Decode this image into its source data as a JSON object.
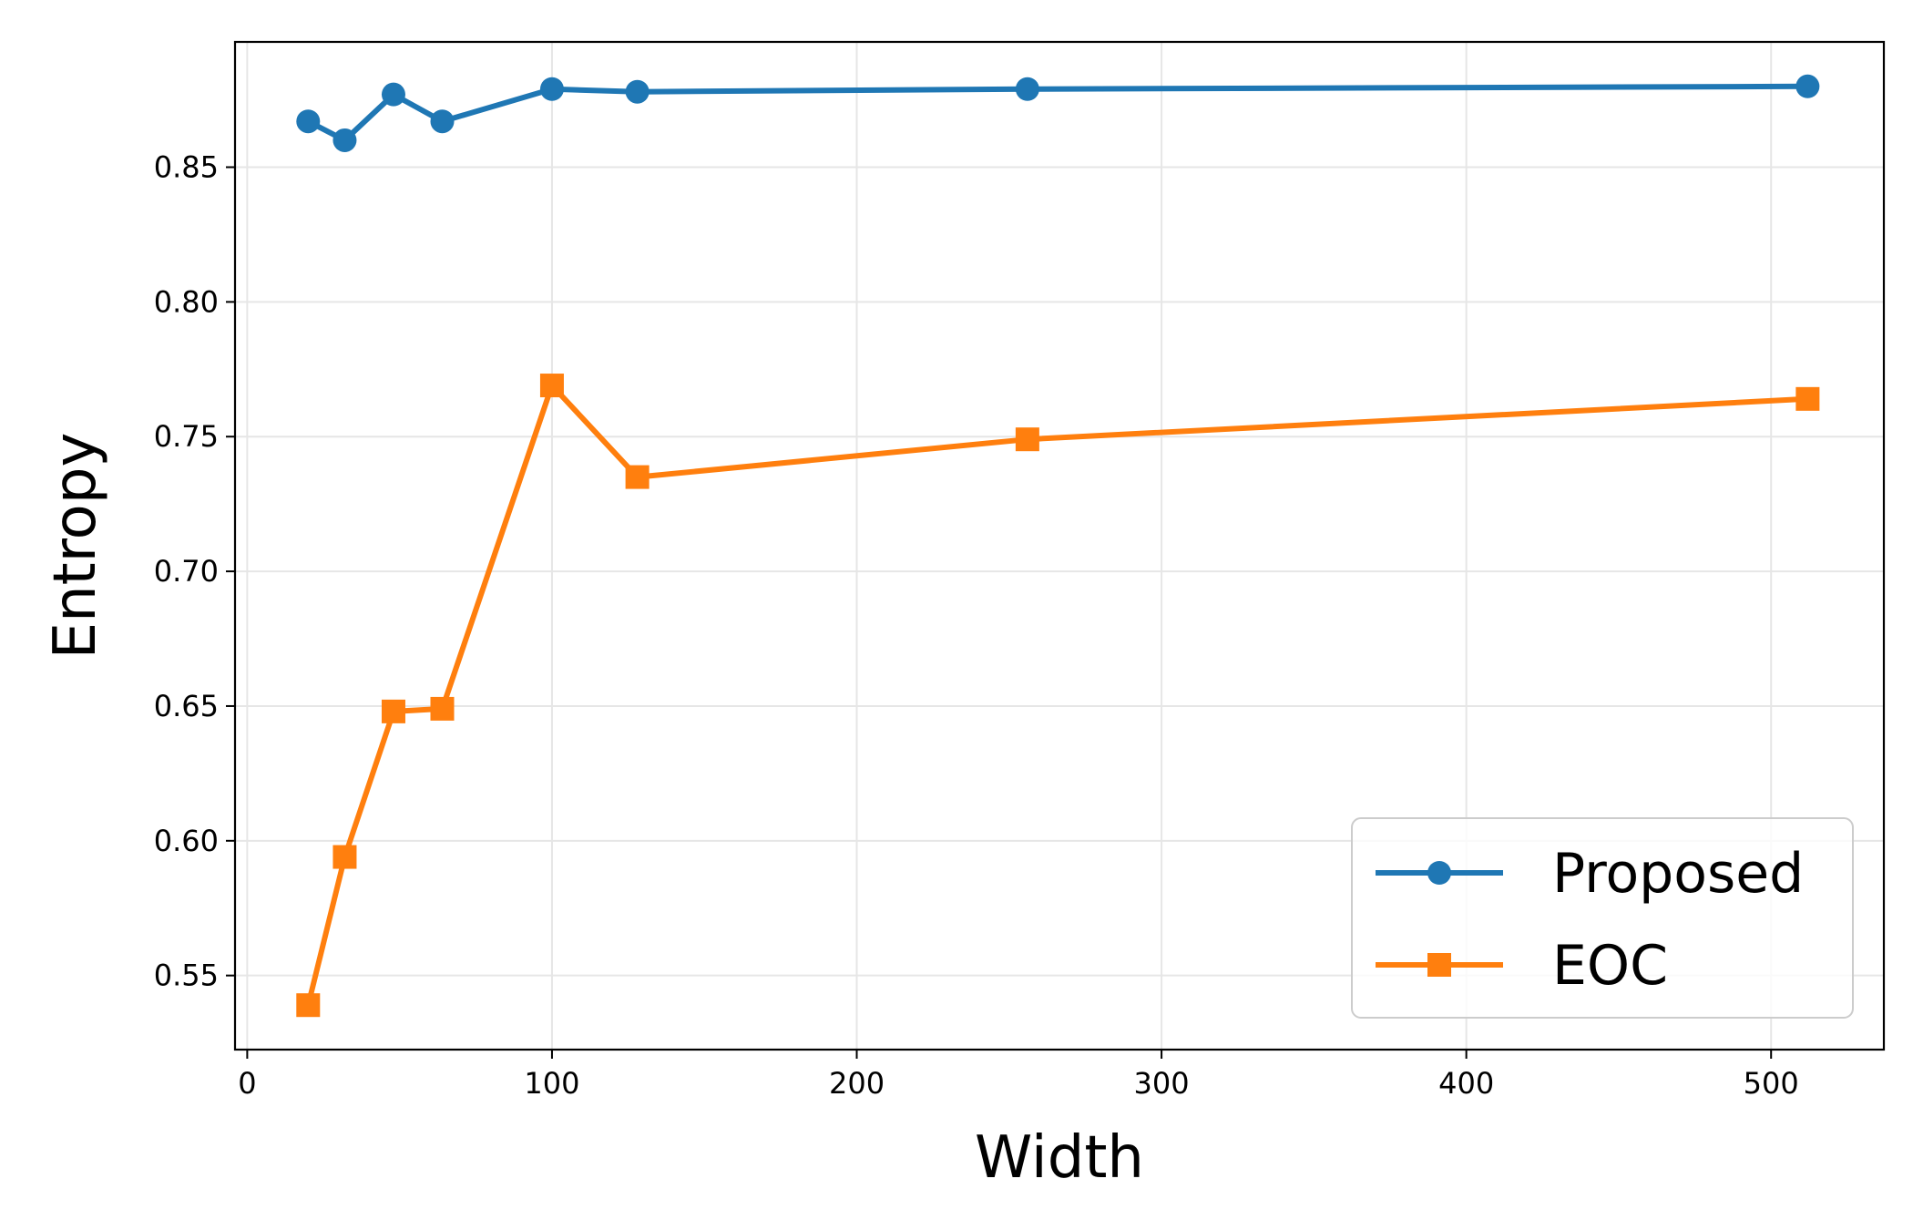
{
  "chart_data": {
    "type": "line",
    "title": "",
    "xlabel": "Width",
    "ylabel": "Entropy",
    "xlim": [
      -4,
      537
    ],
    "ylim": [
      0.5225,
      0.8965
    ],
    "xticks": [
      0,
      100,
      200,
      300,
      400,
      500
    ],
    "yticks": [
      0.55,
      0.6,
      0.65,
      0.7,
      0.75,
      0.8,
      0.85
    ],
    "grid": true,
    "legend_position": "lower-right",
    "series": [
      {
        "name": "Proposed",
        "color": "#1f77b4",
        "marker": "circle",
        "x": [
          20,
          32,
          48,
          64,
          100,
          128,
          256,
          512
        ],
        "y": [
          0.867,
          0.86,
          0.877,
          0.867,
          0.879,
          0.878,
          0.879,
          0.88
        ]
      },
      {
        "name": "EOC",
        "color": "#ff7f0e",
        "marker": "square",
        "x": [
          20,
          32,
          48,
          64,
          100,
          128,
          256,
          512
        ],
        "y": [
          0.539,
          0.594,
          0.648,
          0.649,
          0.769,
          0.735,
          0.749,
          0.764
        ]
      }
    ]
  }
}
